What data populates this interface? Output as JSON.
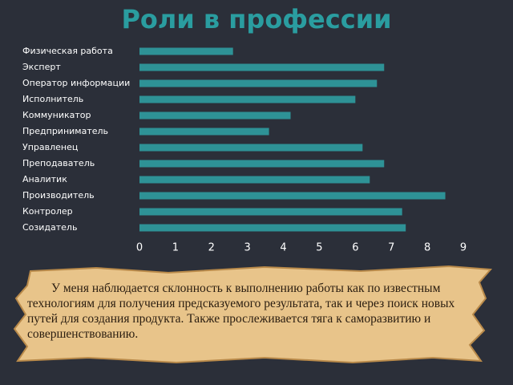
{
  "chart_data": {
    "type": "bar",
    "orientation": "horizontal",
    "title": "Роли в профессии",
    "categories": [
      "Физическая работа",
      "Эксперт",
      "Оператор информации",
      "Исполнитель",
      "Коммуникатор",
      "Предприниматель",
      "Управленец",
      "Преподаватель",
      "Аналитик",
      "Производитель",
      "Контролер",
      "Созидатель"
    ],
    "values": [
      2.6,
      6.8,
      6.6,
      6.0,
      4.2,
      3.6,
      6.2,
      6.8,
      6.4,
      8.5,
      7.3,
      7.4
    ],
    "color": "#2e9296",
    "xlim": [
      0,
      9
    ],
    "xticks": [
      0,
      1,
      2,
      3,
      4,
      5,
      6,
      7,
      8,
      9
    ],
    "grid": false
  },
  "caption": {
    "text": "У меня наблюдается склонность к выполнению работы как по известным технологиям для получения предсказуемого результата, так и через поиск новых путей для создания продукта. Также прослеживается тяга к  саморазвитию и совершенствованию."
  }
}
